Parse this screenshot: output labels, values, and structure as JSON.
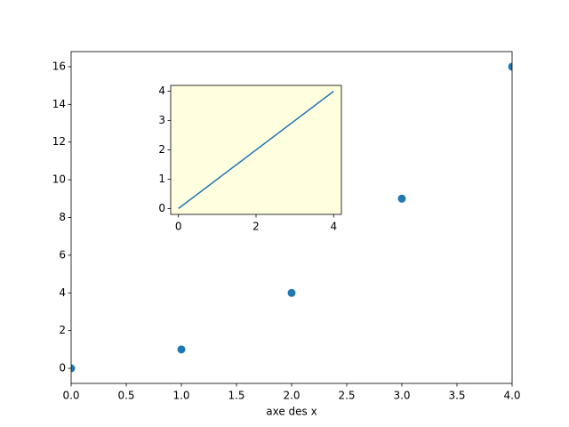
{
  "chart_data": [
    {
      "type": "scatter",
      "xlabel": "axe des x",
      "x": [
        0,
        1,
        2,
        3,
        4
      ],
      "values": [
        0,
        1,
        4,
        9,
        16
      ],
      "color": "#1f77b4",
      "xlim": [
        0,
        4
      ],
      "ylim": [
        -0.8,
        16.8
      ],
      "xticks": [
        {
          "value": 0,
          "label": "0.0"
        },
        0.5,
        {
          "value": 1,
          "label": "1.0"
        },
        1.5,
        {
          "value": 2,
          "label": "2.0"
        },
        2.5,
        {
          "value": 3,
          "label": "3.0"
        },
        3.5,
        {
          "value": 4,
          "label": "4.0"
        }
      ],
      "yticks": [
        0,
        2,
        4,
        6,
        8,
        10,
        12,
        14,
        16
      ]
    },
    {
      "type": "line",
      "background": "#ffffe0",
      "x": [
        0,
        4
      ],
      "values": [
        0,
        4
      ],
      "color": "#1f77b4",
      "xlim": [
        -0.2,
        4.2
      ],
      "ylim": [
        -0.2,
        4.2
      ],
      "xticks": [
        0,
        2,
        4
      ],
      "yticks": [
        0,
        1,
        2,
        3,
        4
      ]
    }
  ]
}
